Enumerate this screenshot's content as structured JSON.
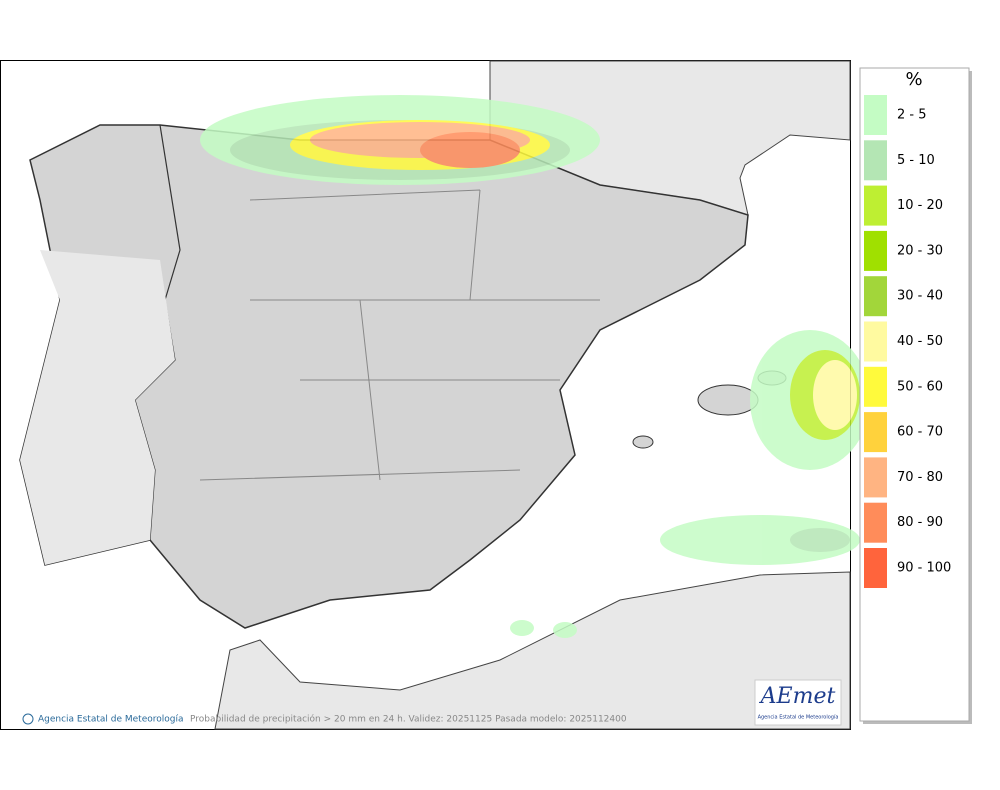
{
  "legend": {
    "title": "%",
    "items": [
      {
        "label": "2 - 5",
        "color": "#c4fcc4"
      },
      {
        "label": "5 - 10",
        "color": "#b4e6b4"
      },
      {
        "label": "10 - 20",
        "color": "#beef32"
      },
      {
        "label": "20 - 30",
        "color": "#a0e000"
      },
      {
        "label": "30 - 40",
        "color": "#a2d63a"
      },
      {
        "label": "40 - 50",
        "color": "#fffaa0"
      },
      {
        "label": "50 - 60",
        "color": "#fffa3c"
      },
      {
        "label": "60 - 70",
        "color": "#ffd23c"
      },
      {
        "label": "70 - 80",
        "color": "#ffb482"
      },
      {
        "label": "80 - 90",
        "color": "#ff8c5a"
      },
      {
        "label": "90 - 100",
        "color": "#ff643c"
      }
    ]
  },
  "footer": {
    "credit": "Agencia Estatal de Meteorología",
    "caption": "Probabilidad de precipitación > 20 mm en 24 h. Validez: 20251125 Pasada modelo: 2025112400"
  },
  "logo": {
    "name": "AEmet",
    "subtitle": "Agencia Estatal de Meteorología"
  }
}
